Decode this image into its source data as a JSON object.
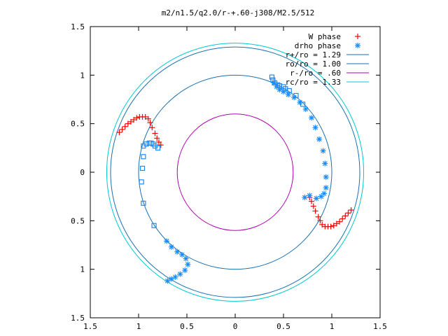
{
  "chart_data": {
    "type": "scatter",
    "title": "m2/n1.5/q2.0/r-+.60-j308/M2.5/512",
    "xlabel": "",
    "ylabel": "",
    "xlim": [
      -1.5,
      1.5
    ],
    "ylim": [
      -1.5,
      1.5
    ],
    "x_ticks": [
      -1.5,
      -1,
      -0.5,
      0,
      0.5,
      1,
      1.5
    ],
    "y_ticks": [
      -1.5,
      -1,
      -0.5,
      0,
      0.5,
      1,
      1.5
    ],
    "x_tick_labels": [
      "1.5",
      "1",
      "0.5",
      "0",
      "0.5",
      "1",
      "1.5"
    ],
    "y_tick_labels": [
      "1.5",
      "1",
      "0.5",
      "0",
      "0.5",
      "1",
      "1.5"
    ],
    "grid": false,
    "legend_position": "top-right",
    "series": [
      {
        "name": "W phase",
        "marker": "plus",
        "color": "#ff0000",
        "points": [
          [
            -1.2,
            0.41
          ],
          [
            -1.17,
            0.44
          ],
          [
            -1.14,
            0.47
          ],
          [
            -1.11,
            0.5
          ],
          [
            -1.08,
            0.52
          ],
          [
            -1.05,
            0.54
          ],
          [
            -1.02,
            0.56
          ],
          [
            -0.99,
            0.57
          ],
          [
            -0.96,
            0.57
          ],
          [
            -0.93,
            0.57
          ],
          [
            -0.9,
            0.55
          ],
          [
            -0.88,
            0.51
          ],
          [
            -0.86,
            0.46
          ],
          [
            -0.83,
            0.4
          ],
          [
            -0.81,
            0.35
          ],
          [
            -0.79,
            0.31
          ],
          [
            -0.77,
            0.28
          ],
          [
            1.2,
            -0.39
          ],
          [
            1.17,
            -0.42
          ],
          [
            1.14,
            -0.45
          ],
          [
            1.11,
            -0.48
          ],
          [
            1.08,
            -0.51
          ],
          [
            1.05,
            -0.53
          ],
          [
            1.02,
            -0.55
          ],
          [
            0.99,
            -0.56
          ],
          [
            0.96,
            -0.56
          ],
          [
            0.93,
            -0.56
          ],
          [
            0.9,
            -0.54
          ],
          [
            0.88,
            -0.5
          ],
          [
            0.86,
            -0.46
          ],
          [
            0.83,
            -0.4
          ],
          [
            0.81,
            -0.35
          ],
          [
            0.79,
            -0.3
          ],
          [
            0.77,
            -0.26
          ]
        ]
      },
      {
        "name": "drho phase",
        "marker": "star",
        "color": "#1a8cff",
        "points": [
          [
            0.4,
            0.92
          ],
          [
            0.43,
            0.88
          ],
          [
            0.46,
            0.85
          ],
          [
            0.5,
            0.83
          ],
          [
            0.55,
            0.8
          ],
          [
            0.61,
            0.77
          ],
          [
            0.67,
            0.72
          ],
          [
            0.73,
            0.65
          ],
          [
            0.79,
            0.56
          ],
          [
            0.83,
            0.46
          ],
          [
            0.87,
            0.34
          ],
          [
            0.91,
            0.22
          ],
          [
            0.93,
            0.09
          ],
          [
            0.94,
            -0.05
          ],
          [
            0.94,
            -0.16
          ],
          [
            0.92,
            -0.22
          ],
          [
            0.89,
            -0.25
          ],
          [
            0.84,
            -0.27
          ],
          [
            0.77,
            -0.24
          ],
          [
            0.72,
            -0.26
          ],
          [
            -0.7,
            -1.12
          ],
          [
            -0.66,
            -1.1
          ],
          [
            -0.62,
            -1.08
          ],
          [
            -0.57,
            -1.05
          ],
          [
            -0.52,
            -1.01
          ],
          [
            -0.49,
            -0.95
          ],
          [
            -0.51,
            -0.89
          ],
          [
            -0.55,
            -0.85
          ],
          [
            -0.6,
            -0.82
          ],
          [
            -0.66,
            -0.77
          ],
          [
            -0.71,
            -0.71
          ]
        ]
      },
      {
        "name": "",
        "marker": "square",
        "color": "#1a8cff",
        "points": [
          [
            0.38,
            0.98
          ],
          [
            0.39,
            0.95
          ],
          [
            0.41,
            0.92
          ],
          [
            0.44,
            0.9
          ],
          [
            0.46,
            0.89
          ],
          [
            0.5,
            0.88
          ],
          [
            0.52,
            0.86
          ],
          [
            0.56,
            0.84
          ],
          [
            0.63,
            0.79
          ],
          [
            0.7,
            0.7
          ],
          [
            -0.95,
            0.27
          ],
          [
            -0.92,
            0.29
          ],
          [
            -0.89,
            0.3
          ],
          [
            -0.87,
            0.3
          ],
          [
            -0.85,
            0.29
          ],
          [
            -0.83,
            0.27
          ],
          [
            -0.8,
            0.25
          ],
          [
            -0.95,
            0.16
          ],
          [
            -0.96,
            0.04
          ],
          [
            -0.97,
            -0.1
          ],
          [
            -0.95,
            -0.32
          ],
          [
            -0.84,
            -0.55
          ]
        ]
      }
    ],
    "circles": [
      {
        "name": "r+/ro = 1.29",
        "radius": 1.29,
        "color": "#1a6fae"
      },
      {
        "name": "ro/ro = 1.00",
        "radius": 1.0,
        "color": "#1a6fae"
      },
      {
        "name": "r-/ro =  .60",
        "radius": 0.6,
        "color": "#b000b0"
      },
      {
        "name": "rc/ro = 1.33",
        "radius": 1.33,
        "color": "#00c8d2"
      }
    ]
  }
}
